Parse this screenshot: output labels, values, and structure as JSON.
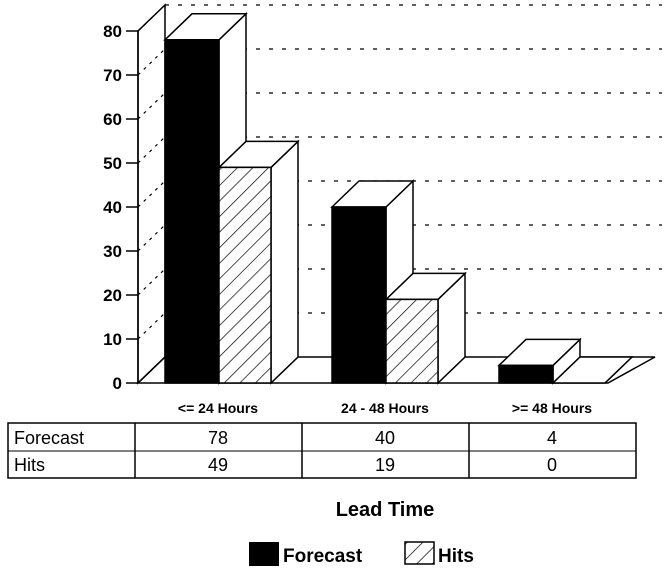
{
  "chart_data": {
    "type": "bar",
    "categories": [
      "<= 24 Hours",
      "24 - 48 Hours",
      ">= 48 Hours"
    ],
    "series": [
      {
        "name": "Forecast",
        "values": [
          78,
          40,
          4
        ],
        "fill": "solid-black"
      },
      {
        "name": "Hits",
        "values": [
          49,
          19,
          0
        ],
        "fill": "diagonal-hatch"
      }
    ],
    "xlabel": "Lead Time",
    "ylabel": "",
    "ylim": [
      0,
      80
    ],
    "yticks": [
      "0",
      "10",
      "20",
      "30",
      "40",
      "50",
      "60",
      "70",
      "80"
    ],
    "grid": true,
    "three_d": true,
    "legend_position": "bottom",
    "data_table": {
      "rows": [
        {
          "label": "Forecast",
          "cells": [
            "78",
            "40",
            "4"
          ]
        },
        {
          "label": "Hits",
          "cells": [
            "49",
            "19",
            "0"
          ]
        }
      ]
    }
  }
}
